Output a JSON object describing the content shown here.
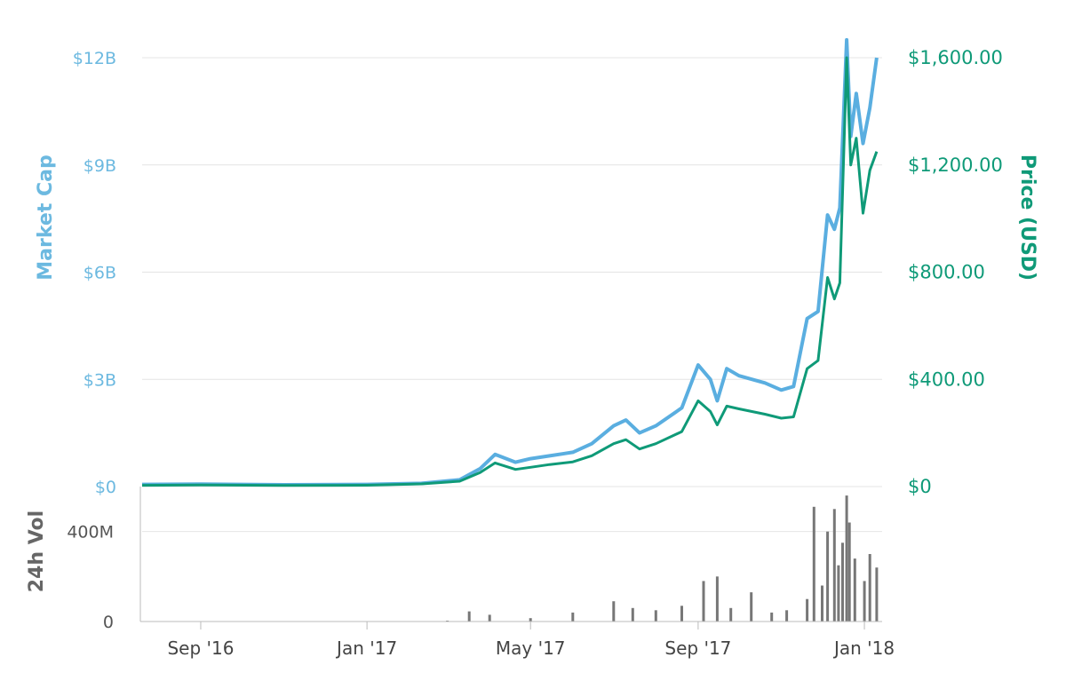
{
  "chart_data": {
    "type": "line",
    "y_left": {
      "label": "Market Cap",
      "ticks": [
        "$0",
        "$3B",
        "$6B",
        "$9B",
        "$12B"
      ],
      "range": [
        0,
        12000000000
      ]
    },
    "y_right": {
      "label": "Price (USD)",
      "ticks": [
        "$0",
        "$400.00",
        "$800.00",
        "$1,200.00",
        "$1,600.00"
      ],
      "range": [
        0,
        1600
      ]
    },
    "volume_axis": {
      "label": "24h Vol",
      "ticks": [
        "0",
        "400M"
      ],
      "range": [
        0,
        600000000
      ]
    },
    "x_ticks": [
      "Sep '16",
      "Jan '17",
      "May '17",
      "Sep '17",
      "Jan '18"
    ],
    "x_range": [
      "2016-07-20",
      "2018-01-14"
    ],
    "grid": true,
    "colors": {
      "market_cap": "#5aaee0",
      "price": "#0f9a78",
      "volume": "#777777"
    },
    "series": [
      {
        "name": "Market Cap",
        "points": [
          [
            "2016-07-20",
            60000000
          ],
          [
            "2016-09-01",
            70000000
          ],
          [
            "2016-11-01",
            50000000
          ],
          [
            "2017-01-01",
            60000000
          ],
          [
            "2017-02-10",
            90000000
          ],
          [
            "2017-03-10",
            190000000
          ],
          [
            "2017-03-25",
            500000000
          ],
          [
            "2017-04-05",
            900000000
          ],
          [
            "2017-04-20",
            680000000
          ],
          [
            "2017-05-01",
            780000000
          ],
          [
            "2017-05-15",
            860000000
          ],
          [
            "2017-06-01",
            960000000
          ],
          [
            "2017-06-15",
            1200000000
          ],
          [
            "2017-07-01",
            1700000000
          ],
          [
            "2017-07-10",
            1860000000
          ],
          [
            "2017-07-20",
            1500000000
          ],
          [
            "2017-08-01",
            1700000000
          ],
          [
            "2017-08-20",
            2200000000
          ],
          [
            "2017-09-01",
            3400000000
          ],
          [
            "2017-09-10",
            3000000000
          ],
          [
            "2017-09-15",
            2400000000
          ],
          [
            "2017-09-22",
            3300000000
          ],
          [
            "2017-10-01",
            3100000000
          ],
          [
            "2017-10-20",
            2900000000
          ],
          [
            "2017-11-01",
            2700000000
          ],
          [
            "2017-11-10",
            2800000000
          ],
          [
            "2017-11-20",
            4700000000
          ],
          [
            "2017-11-28",
            4900000000
          ],
          [
            "2017-12-05",
            7600000000
          ],
          [
            "2017-12-10",
            7200000000
          ],
          [
            "2017-12-14",
            7800000000
          ],
          [
            "2017-12-19",
            12500000000
          ],
          [
            "2017-12-22",
            9800000000
          ],
          [
            "2017-12-26",
            11000000000
          ],
          [
            "2017-12-31",
            9600000000
          ],
          [
            "2018-01-05",
            10600000000
          ],
          [
            "2018-01-10",
            12000000000
          ]
        ]
      },
      {
        "name": "Price (USD)",
        "points": [
          [
            "2016-07-20",
            4.5
          ],
          [
            "2016-09-01",
            6
          ],
          [
            "2016-11-01",
            4
          ],
          [
            "2017-01-01",
            5
          ],
          [
            "2017-02-10",
            10
          ],
          [
            "2017-03-10",
            20
          ],
          [
            "2017-03-25",
            52
          ],
          [
            "2017-04-05",
            88
          ],
          [
            "2017-04-20",
            64
          ],
          [
            "2017-05-01",
            72
          ],
          [
            "2017-05-15",
            82
          ],
          [
            "2017-06-01",
            92
          ],
          [
            "2017-06-15",
            115
          ],
          [
            "2017-07-01",
            160
          ],
          [
            "2017-07-10",
            175
          ],
          [
            "2017-07-20",
            140
          ],
          [
            "2017-08-01",
            160
          ],
          [
            "2017-08-20",
            205
          ],
          [
            "2017-09-01",
            320
          ],
          [
            "2017-09-10",
            280
          ],
          [
            "2017-09-15",
            230
          ],
          [
            "2017-09-22",
            300
          ],
          [
            "2017-10-01",
            290
          ],
          [
            "2017-10-20",
            270
          ],
          [
            "2017-11-01",
            255
          ],
          [
            "2017-11-10",
            260
          ],
          [
            "2017-11-20",
            440
          ],
          [
            "2017-11-28",
            470
          ],
          [
            "2017-12-05",
            780
          ],
          [
            "2017-12-10",
            700
          ],
          [
            "2017-12-14",
            760
          ],
          [
            "2017-12-19",
            1600
          ],
          [
            "2017-12-22",
            1200
          ],
          [
            "2017-12-26",
            1300
          ],
          [
            "2017-12-31",
            1020
          ],
          [
            "2018-01-05",
            1180
          ],
          [
            "2018-01-10",
            1250
          ]
        ]
      },
      {
        "name": "24h Vol",
        "points": [
          [
            "2016-07-20",
            0
          ],
          [
            "2017-03-01",
            4000000
          ],
          [
            "2017-03-17",
            45000000
          ],
          [
            "2017-04-01",
            30000000
          ],
          [
            "2017-05-01",
            15000000
          ],
          [
            "2017-06-01",
            40000000
          ],
          [
            "2017-07-01",
            90000000
          ],
          [
            "2017-07-15",
            60000000
          ],
          [
            "2017-08-01",
            50000000
          ],
          [
            "2017-08-20",
            70000000
          ],
          [
            "2017-09-05",
            180000000
          ],
          [
            "2017-09-15",
            200000000
          ],
          [
            "2017-09-25",
            60000000
          ],
          [
            "2017-10-10",
            130000000
          ],
          [
            "2017-10-25",
            40000000
          ],
          [
            "2017-11-05",
            50000000
          ],
          [
            "2017-11-20",
            100000000
          ],
          [
            "2017-11-25",
            510000000
          ],
          [
            "2017-12-01",
            160000000
          ],
          [
            "2017-12-05",
            400000000
          ],
          [
            "2017-12-10",
            500000000
          ],
          [
            "2017-12-13",
            250000000
          ],
          [
            "2017-12-16",
            350000000
          ],
          [
            "2017-12-19",
            560000000
          ],
          [
            "2017-12-21",
            440000000
          ],
          [
            "2017-12-25",
            280000000
          ],
          [
            "2018-01-01",
            180000000
          ],
          [
            "2018-01-05",
            300000000
          ],
          [
            "2018-01-10",
            240000000
          ]
        ]
      }
    ]
  }
}
